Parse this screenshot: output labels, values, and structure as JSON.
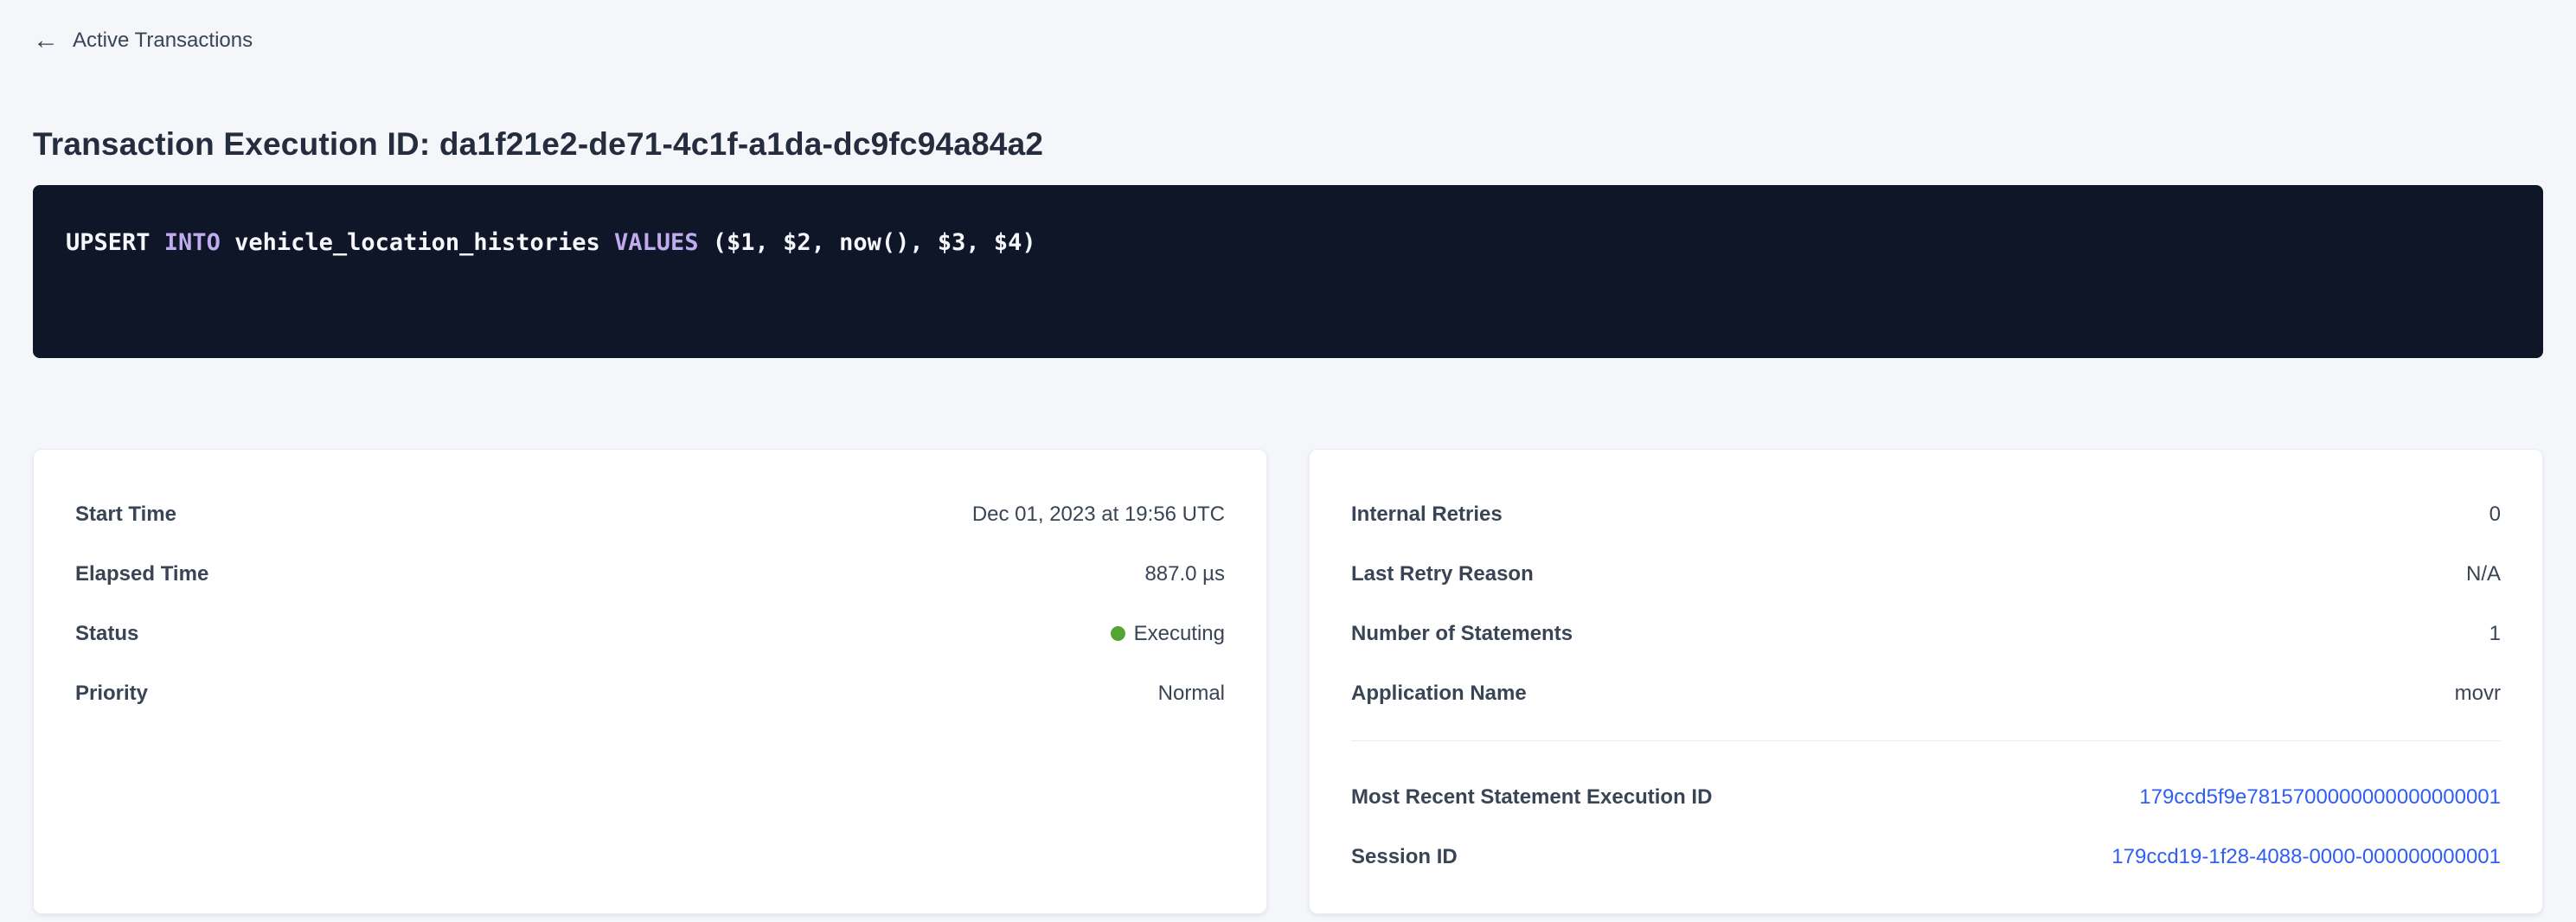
{
  "page": {
    "back_icon": "←",
    "back_label": "Active Transactions",
    "title": "Transaction Execution ID: da1f21e2-de71-4c1f-a1da-dc9fc94a84a2",
    "background_color": "#f4f6fa"
  },
  "sql": {
    "background_color": "#0f1628",
    "keyword_color": "#c0abee",
    "text_color": "#f5f7fa",
    "parts": {
      "p0": "UPSERT ",
      "p1": "INTO",
      "p2": " vehicle_location_histories ",
      "p3": "VALUES",
      "p4": " ($1, $2, now(), $3, $4)"
    },
    "full_statement": "UPSERT INTO vehicle_location_histories VALUES ($1, $2, now(), $3, $4)"
  },
  "cards": {
    "left": {
      "rows": [
        {
          "label": "Start Time",
          "value": "Dec 01, 2023 at 19:56 UTC"
        },
        {
          "label": "Elapsed Time",
          "value": "887.0 µs"
        },
        {
          "label": "Status",
          "value": "Executing",
          "status_color": "#55a532"
        },
        {
          "label": "Priority",
          "value": "Normal"
        }
      ]
    },
    "right": {
      "rows": [
        {
          "label": "Internal Retries",
          "value": "0"
        },
        {
          "label": "Last Retry Reason",
          "value": "N/A"
        },
        {
          "label": "Number of Statements",
          "value": "1"
        },
        {
          "label": "Application Name",
          "value": "movr"
        }
      ],
      "link_rows": [
        {
          "label": "Most Recent Statement Execution ID",
          "value": "179ccd5f9e7815700000000000000001"
        },
        {
          "label": "Session ID",
          "value": "179ccd19-1f28-4088-0000-000000000001"
        }
      ],
      "link_color": "#2f5ef5"
    }
  }
}
